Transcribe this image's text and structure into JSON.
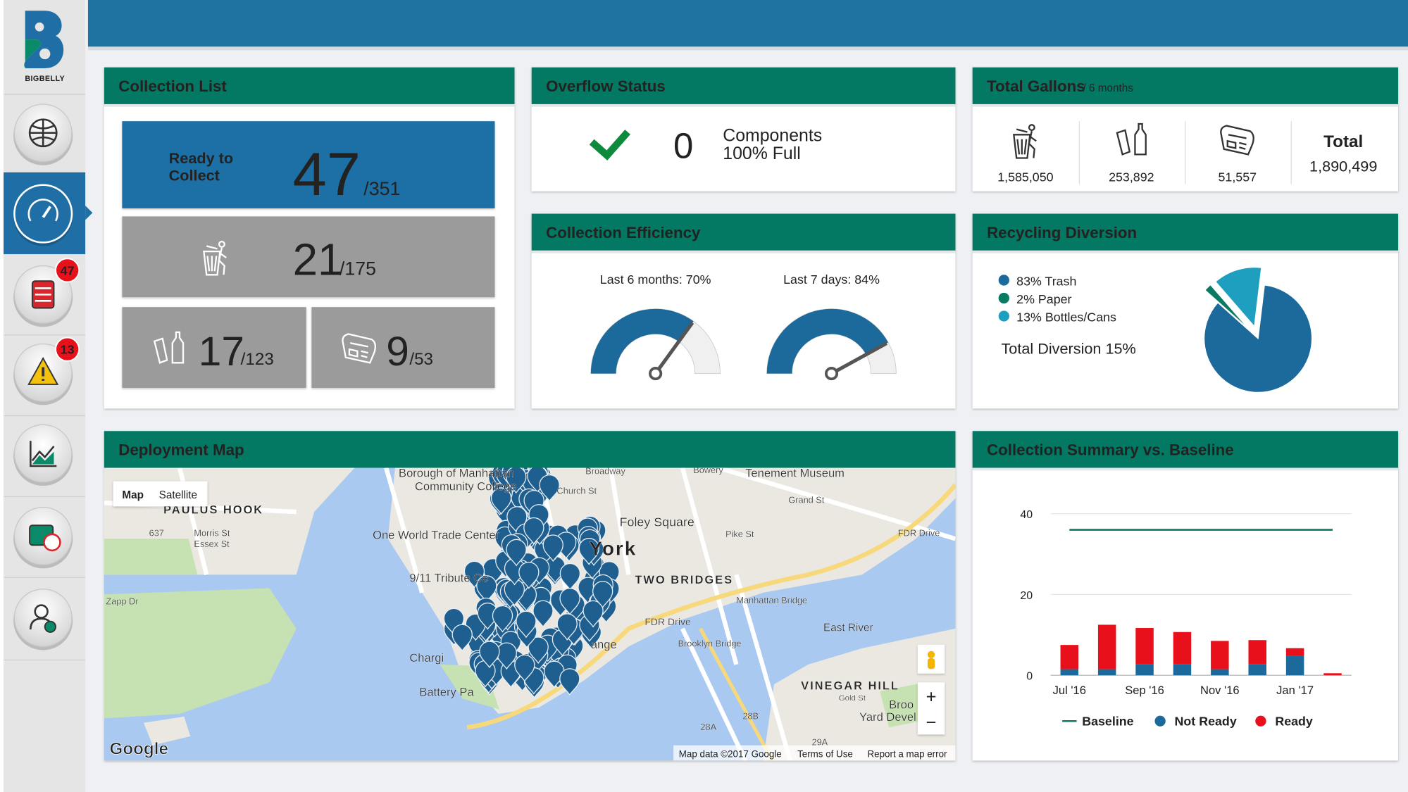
{
  "sidebar": {
    "logo": "BIGBELLY",
    "badges": [
      47,
      13
    ]
  },
  "collection_list": {
    "title": "Collection List",
    "ready": {
      "label": [
        "Ready to",
        "Collect"
      ],
      "value": 47,
      "total": "/351"
    },
    "trash": {
      "value": 21,
      "total": "/175"
    },
    "bottles": {
      "value": 17,
      "total": "/123"
    },
    "paper": {
      "value": 9,
      "total": "/53"
    }
  },
  "overflow_status": {
    "title": "Overflow Status",
    "count": 0,
    "text": [
      "Components",
      "100% Full"
    ]
  },
  "total_gallons": {
    "title": "Total Gallons",
    "subtitle": "/ 6 months",
    "items": [
      "1,585,050",
      "253,892",
      "51,557"
    ],
    "total_label": "Total",
    "total": "1,890,499"
  },
  "collection_efficiency": {
    "title": "Collection Efficiency",
    "gauges": [
      {
        "label": "Last 6 months: 70%",
        "value": 70
      },
      {
        "label": "Last 7 days: 84%",
        "value": 84
      }
    ]
  },
  "recycling_diversion": {
    "title": "Recycling Diversion",
    "type": "pie",
    "labels": [
      "83% Trash",
      "2% Paper",
      "13% Bottles/Cans"
    ],
    "values": [
      83,
      2,
      13
    ],
    "colors": [
      "#1c6a9b",
      "#0b7a62",
      "#1e9fbf"
    ],
    "total": "Total Diversion 15%"
  },
  "deployment_map": {
    "title": "Deployment Map",
    "buttons": [
      "Map",
      "Satellite"
    ],
    "zoom": [
      "+",
      "−"
    ],
    "labels": [
      "Borough of Manhattan",
      "Community College",
      "Tenement Museum",
      "PAULUS HOOK",
      "Morris St",
      "Essex St",
      "637",
      "One World Trade Center",
      "Foley Square",
      "York",
      "TWO BRIDGES",
      "9/11 Tribute Ce",
      "Zapp Dr",
      "FDR Drive",
      "East River",
      "Pike St",
      "Manhattan Bridge",
      "Brooklyn Bridge",
      "Grand St",
      "Chargi",
      "ange",
      "Battery Pa",
      "VINEGAR HILL",
      "Broo",
      "Yard Devel",
      "Gold St",
      "28A",
      "28B",
      "29A",
      "FDR Drive",
      "Broadway",
      "Church St",
      "Bowery"
    ],
    "logo": "Google",
    "footer": [
      "Map data ©2017 Google",
      "Terms of Use",
      "Report a map error"
    ]
  },
  "chart_data": {
    "type": "bar",
    "stacked": true,
    "title": "Collection Summary vs. Baseline",
    "categories": [
      "Jul '16",
      null,
      "Sep '16",
      null,
      "Nov '16",
      null,
      "Jan '17",
      null
    ],
    "series": [
      {
        "name": "Baseline",
        "type": "line",
        "color": "#0b7a62",
        "values": [
          36,
          36,
          36,
          36,
          36,
          36,
          36,
          36
        ]
      },
      {
        "name": "Not Ready",
        "color": "#1c6a9b",
        "values": [
          1.5,
          1.5,
          2.7,
          2.7,
          1.5,
          2.7,
          4.9,
          0
        ]
      },
      {
        "name": "Ready",
        "color": "#e8101a",
        "values": [
          6,
          11,
          9,
          8,
          7,
          6,
          1.8,
          0.5
        ]
      }
    ],
    "ylim": [
      0,
      45
    ],
    "yticks": [
      0,
      20,
      40
    ],
    "grid": true,
    "legend": "bottom"
  }
}
